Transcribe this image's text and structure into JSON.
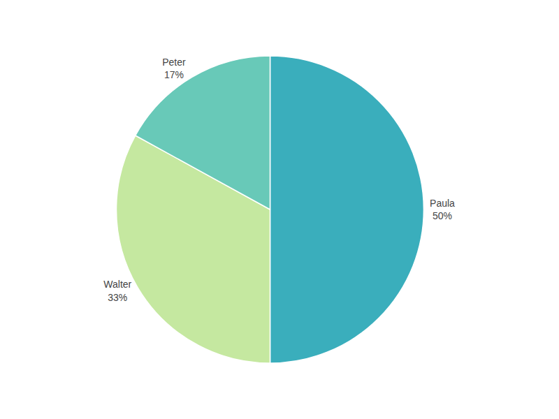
{
  "chart_data": {
    "type": "pie",
    "categories": [
      "Paula",
      "Walter",
      "Peter"
    ],
    "values": [
      50,
      33,
      17
    ],
    "value_labels": [
      "50%",
      "33%",
      "17%"
    ],
    "colors": [
      "#3aaebc",
      "#c5e8a0",
      "#68c9b8"
    ],
    "data_labels": true
  }
}
